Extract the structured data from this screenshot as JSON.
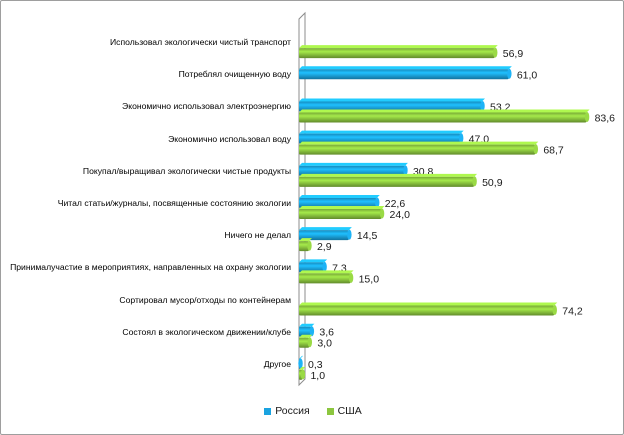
{
  "chart_data": {
    "type": "bar",
    "orientation": "horizontal",
    "style": "3d-cylinder",
    "title": "",
    "xlabel": "",
    "ylabel": "",
    "xlim": [
      0,
      85
    ],
    "grid": false,
    "legend_position": "bottom",
    "categories": [
      "Использовал экологически чистый транспорт",
      "Потреблял очищенную воду",
      "Экономично использовал электроэнергию",
      "Экономично использовал воду",
      "Покупал/выращивал экологически чистые продукты",
      "Читал статьи/журналы, посвященные состоянию экологии",
      "Ничего не делал",
      "Принималучастие в мероприятиях, направленных на охрану экологии",
      "Сортировал мусор/отходы по контейнерам",
      "Состоял в экологическом движении/клубе",
      "Другое"
    ],
    "series": [
      {
        "name": "Россия",
        "color": "#1aa3e0",
        "values": [
          null,
          61.0,
          53.2,
          47.0,
          30.8,
          22.6,
          14.5,
          7.3,
          null,
          3.6,
          0.3
        ],
        "labels": [
          "",
          "61,0",
          "53,2",
          "47,0",
          "30,8",
          "22,6",
          "14,5",
          "7,3",
          "",
          "3,6",
          "0,3"
        ]
      },
      {
        "name": "США",
        "color": "#8cc63f",
        "values": [
          56.9,
          null,
          83.6,
          68.7,
          50.9,
          24.0,
          2.9,
          15.0,
          74.2,
          3.0,
          1.0
        ],
        "labels": [
          "56,9",
          "",
          "83,6",
          "68,7",
          "50,9",
          "24,0",
          "2,9",
          "15,0",
          "74,2",
          "3,0",
          "1,0"
        ]
      }
    ]
  }
}
